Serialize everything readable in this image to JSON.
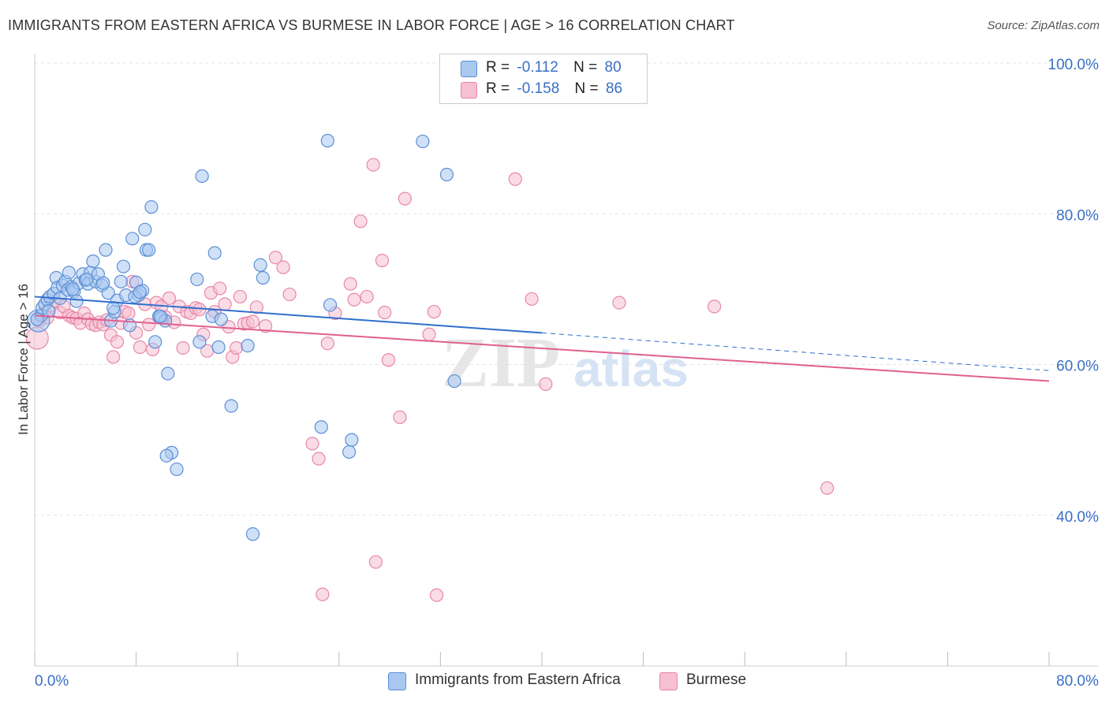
{
  "title": "IMMIGRANTS FROM EASTERN AFRICA VS BURMESE IN LABOR FORCE | AGE > 16 CORRELATION CHART",
  "source": "Source: ZipAtlas.com",
  "watermark": {
    "zip": "ZIP",
    "atlas": "atlas"
  },
  "colors": {
    "blue_fill": "#a9c8f0",
    "blue_stroke": "#5b8fd6",
    "blue_line": "#2f6fcc",
    "pink_fill": "#f6bfd2",
    "pink_stroke": "#e887a8",
    "pink_line": "#e0608e",
    "axis_text": "#3a6fc4",
    "grid": "#e3e3e3"
  },
  "legend": [
    {
      "r_label": "R =",
      "r_value": "-0.112",
      "n_label": "N =",
      "n_value": "80"
    },
    {
      "r_label": "R =",
      "r_value": "-0.158",
      "n_label": "N =",
      "n_value": "86"
    }
  ],
  "chart_data": {
    "type": "scatter",
    "title": "IMMIGRANTS FROM EASTERN AFRICA VS BURMESE IN LABOR FORCE | AGE > 16 CORRELATION CHART",
    "xlabel": "",
    "ylabel": "In Labor Force | Age > 16",
    "xlim": [
      0,
      80
    ],
    "ylim": [
      20,
      100
    ],
    "x_tick_labels": [
      "0.0%",
      "80.0%"
    ],
    "y_tick_labels": [
      "40.0%",
      "60.0%",
      "80.0%",
      "100.0%"
    ],
    "y_ticks": [
      40,
      60,
      80,
      100
    ],
    "grid": true,
    "legend_position": "top-center",
    "series": [
      {
        "name": "Immigrants from Eastern Africa",
        "color": "blue",
        "R": -0.112,
        "N": 80,
        "trend": {
          "x0": 0,
          "y0": 69.0,
          "x1": 40,
          "y1": 64.2,
          "dashed_to_x": 80,
          "dashed_to_y": 59.2
        },
        "points": [
          [
            0.3,
            65.8
          ],
          [
            0.5,
            66.5
          ],
          [
            0.6,
            67.5
          ],
          [
            0.8,
            68.0
          ],
          [
            1.0,
            68.6
          ],
          [
            1.2,
            69.0
          ],
          [
            1.5,
            69.4
          ],
          [
            1.7,
            71.5
          ],
          [
            1.8,
            70.2
          ],
          [
            2.0,
            68.8
          ],
          [
            2.2,
            70.5
          ],
          [
            2.4,
            71.0
          ],
          [
            2.6,
            69.9
          ],
          [
            2.9,
            70.3
          ],
          [
            3.1,
            69.7
          ],
          [
            3.3,
            68.4
          ],
          [
            3.5,
            70.8
          ],
          [
            3.8,
            72.0
          ],
          [
            4.0,
            71.2
          ],
          [
            4.2,
            70.7
          ],
          [
            4.4,
            72.2
          ],
          [
            4.6,
            73.7
          ],
          [
            4.8,
            71.0
          ],
          [
            5.0,
            72.0
          ],
          [
            5.3,
            70.5
          ],
          [
            5.6,
            75.2
          ],
          [
            5.8,
            69.5
          ],
          [
            6.0,
            65.8
          ],
          [
            6.3,
            67.0
          ],
          [
            6.5,
            68.5
          ],
          [
            6.8,
            71.0
          ],
          [
            7.0,
            73.0
          ],
          [
            7.2,
            69.2
          ],
          [
            7.5,
            65.2
          ],
          [
            7.7,
            76.7
          ],
          [
            8.0,
            70.9
          ],
          [
            8.2,
            69.2
          ],
          [
            8.5,
            69.8
          ],
          [
            8.7,
            77.9
          ],
          [
            8.8,
            75.2
          ],
          [
            9.0,
            75.2
          ],
          [
            9.2,
            80.9
          ],
          [
            9.5,
            63.0
          ],
          [
            9.8,
            66.4
          ],
          [
            10.0,
            66.2
          ],
          [
            10.3,
            65.8
          ],
          [
            10.5,
            58.8
          ],
          [
            11.2,
            46.1
          ],
          [
            10.8,
            48.3
          ],
          [
            10.4,
            47.9
          ],
          [
            12.8,
            71.3
          ],
          [
            13.2,
            85.0
          ],
          [
            14.0,
            66.4
          ],
          [
            14.2,
            74.8
          ],
          [
            14.5,
            62.3
          ],
          [
            15.5,
            54.5
          ],
          [
            16.8,
            62.5
          ],
          [
            17.2,
            37.5
          ],
          [
            17.8,
            73.2
          ],
          [
            18.0,
            71.5
          ],
          [
            22.6,
            51.7
          ],
          [
            23.1,
            89.7
          ],
          [
            23.3,
            67.9
          ],
          [
            24.8,
            48.4
          ],
          [
            25.0,
            50.0
          ],
          [
            30.6,
            89.6
          ],
          [
            32.5,
            85.2
          ],
          [
            33.1,
            57.8
          ],
          [
            2.7,
            72.2
          ],
          [
            1.1,
            67.1
          ],
          [
            3.0,
            70.0
          ],
          [
            4.1,
            71.3
          ],
          [
            5.4,
            70.8
          ],
          [
            6.2,
            67.5
          ],
          [
            7.9,
            69.0
          ],
          [
            8.3,
            69.6
          ],
          [
            0.2,
            66.0
          ],
          [
            9.9,
            66.4
          ],
          [
            13.0,
            63.0
          ],
          [
            14.7,
            66.0
          ]
        ]
      },
      {
        "name": "Burmese",
        "color": "pink",
        "R": -0.158,
        "N": 86,
        "trend": {
          "x0": 0,
          "y0": 66.5,
          "x1": 80,
          "y1": 57.8
        },
        "points": [
          [
            0.2,
            63.5
          ],
          [
            0.4,
            65.8
          ],
          [
            0.6,
            66.6
          ],
          [
            0.8,
            67.0
          ],
          [
            1.0,
            66.2
          ],
          [
            1.3,
            67.8
          ],
          [
            1.6,
            68.4
          ],
          [
            2.0,
            66.9
          ],
          [
            2.3,
            67.7
          ],
          [
            2.7,
            66.5
          ],
          [
            3.0,
            66.2
          ],
          [
            3.3,
            66.1
          ],
          [
            3.6,
            65.5
          ],
          [
            3.9,
            66.8
          ],
          [
            4.2,
            66.0
          ],
          [
            4.5,
            65.4
          ],
          [
            4.8,
            65.2
          ],
          [
            5.1,
            65.6
          ],
          [
            5.4,
            65.3
          ],
          [
            5.7,
            65.9
          ],
          [
            6.0,
            63.9
          ],
          [
            6.2,
            61.0
          ],
          [
            6.5,
            63.0
          ],
          [
            6.8,
            65.5
          ],
          [
            7.1,
            67.0
          ],
          [
            7.4,
            66.8
          ],
          [
            7.7,
            71.0
          ],
          [
            8.0,
            64.2
          ],
          [
            8.3,
            62.3
          ],
          [
            8.7,
            68.0
          ],
          [
            9.0,
            65.3
          ],
          [
            9.3,
            62.0
          ],
          [
            9.6,
            68.2
          ],
          [
            10.0,
            67.7
          ],
          [
            10.3,
            66.3
          ],
          [
            10.6,
            68.8
          ],
          [
            11.0,
            65.6
          ],
          [
            11.4,
            67.7
          ],
          [
            11.7,
            62.2
          ],
          [
            12.0,
            67.0
          ],
          [
            12.3,
            66.8
          ],
          [
            12.7,
            67.5
          ],
          [
            13.0,
            67.3
          ],
          [
            13.3,
            64.0
          ],
          [
            13.6,
            61.8
          ],
          [
            13.9,
            69.5
          ],
          [
            14.2,
            67.0
          ],
          [
            14.6,
            70.1
          ],
          [
            15.0,
            68.0
          ],
          [
            15.3,
            65.0
          ],
          [
            15.6,
            61.0
          ],
          [
            15.9,
            62.2
          ],
          [
            16.2,
            69.0
          ],
          [
            16.5,
            65.4
          ],
          [
            16.8,
            65.5
          ],
          [
            17.2,
            65.7
          ],
          [
            17.5,
            67.6
          ],
          [
            18.2,
            65.1
          ],
          [
            19.0,
            74.2
          ],
          [
            19.6,
            72.9
          ],
          [
            20.1,
            69.3
          ],
          [
            21.9,
            49.5
          ],
          [
            22.4,
            47.5
          ],
          [
            22.7,
            29.5
          ],
          [
            23.1,
            62.8
          ],
          [
            23.7,
            66.8
          ],
          [
            24.9,
            70.7
          ],
          [
            25.2,
            68.6
          ],
          [
            25.7,
            79.0
          ],
          [
            26.2,
            69.0
          ],
          [
            26.7,
            86.5
          ],
          [
            26.9,
            33.8
          ],
          [
            27.4,
            73.8
          ],
          [
            27.6,
            66.9
          ],
          [
            27.9,
            60.6
          ],
          [
            28.8,
            53.0
          ],
          [
            29.2,
            82.0
          ],
          [
            31.1,
            64.0
          ],
          [
            31.5,
            67.0
          ],
          [
            31.7,
            29.4
          ],
          [
            37.9,
            84.6
          ],
          [
            39.2,
            68.7
          ],
          [
            40.3,
            57.4
          ],
          [
            46.1,
            68.2
          ],
          [
            53.6,
            67.7
          ],
          [
            62.5,
            43.6
          ]
        ]
      }
    ]
  },
  "bottom_legend": [
    "Immigrants from Eastern Africa",
    "Burmese"
  ]
}
